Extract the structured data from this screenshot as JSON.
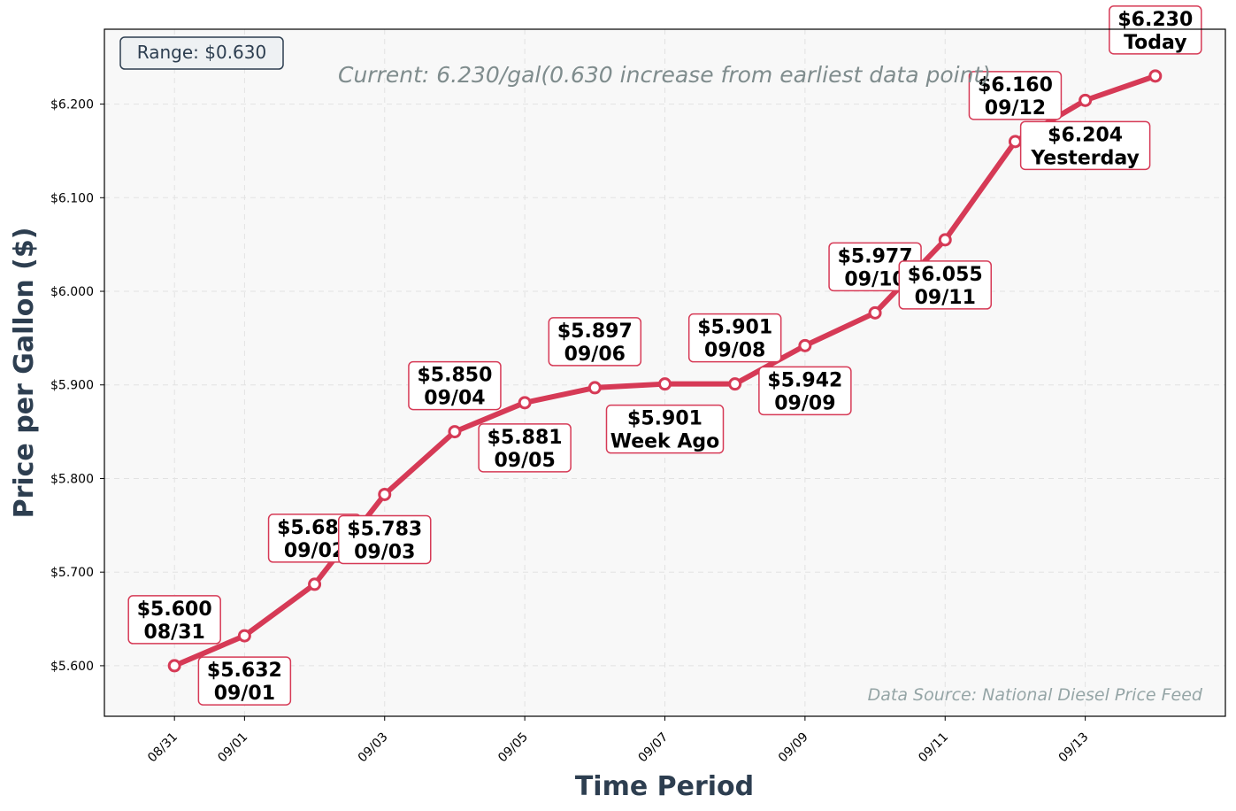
{
  "chart_data": {
    "type": "line",
    "xlabel": "Time Period",
    "ylabel": "Price per Gallon ($)",
    "x_tick_labels": [
      "08/31",
      "09/01",
      "09/03",
      "09/05",
      "09/07",
      "09/09",
      "09/11",
      "09/13"
    ],
    "x_tick_dates": [
      "2024-08-31",
      "2024-09-01",
      "2024-09-03",
      "2024-09-05",
      "2024-09-07",
      "2024-09-09",
      "2024-09-11",
      "2024-09-13"
    ],
    "y_tick_labels": [
      "$5.600",
      "$5.700",
      "$5.800",
      "$5.900",
      "$6.000",
      "$6.100",
      "$6.200"
    ],
    "y_ticks": [
      5.6,
      5.7,
      5.8,
      5.9,
      6.0,
      6.1,
      6.2
    ],
    "xlim": [
      "2024-08-30",
      "2024-09-15"
    ],
    "ylim": [
      5.546,
      6.28
    ],
    "grid": true,
    "series_color": "#d63a56",
    "x": [
      "2024-08-31",
      "2024-09-01",
      "2024-09-02",
      "2024-09-03",
      "2024-09-04",
      "2024-09-05",
      "2024-09-06",
      "2024-09-07",
      "2024-09-08",
      "2024-09-09",
      "2024-09-10",
      "2024-09-11",
      "2024-09-12",
      "2024-09-13",
      "2024-09-14"
    ],
    "values": [
      5.6,
      5.632,
      5.687,
      5.783,
      5.85,
      5.881,
      5.897,
      5.901,
      5.901,
      5.942,
      5.977,
      6.055,
      6.16,
      6.204,
      6.23
    ],
    "annotations": [
      {
        "index": 0,
        "price": "$5.600",
        "label": "08/31",
        "position": "above"
      },
      {
        "index": 1,
        "price": "$5.632",
        "label": "09/01",
        "position": "below"
      },
      {
        "index": 2,
        "price": "$5.687",
        "label": "09/02",
        "position": "above"
      },
      {
        "index": 3,
        "price": "$5.783",
        "label": "09/03",
        "position": "below"
      },
      {
        "index": 4,
        "price": "$5.850",
        "label": "09/04",
        "position": "above"
      },
      {
        "index": 5,
        "price": "$5.881",
        "label": "09/05",
        "position": "below"
      },
      {
        "index": 6,
        "price": "$5.897",
        "label": "09/06",
        "position": "above"
      },
      {
        "index": 7,
        "price": "$5.901",
        "label": "Week Ago",
        "position": "below"
      },
      {
        "index": 8,
        "price": "$5.901",
        "label": "09/08",
        "position": "above"
      },
      {
        "index": 9,
        "price": "$5.942",
        "label": "09/09",
        "position": "below"
      },
      {
        "index": 10,
        "price": "$5.977",
        "label": "09/10",
        "position": "above"
      },
      {
        "index": 11,
        "price": "$6.055",
        "label": "09/11",
        "position": "below"
      },
      {
        "index": 12,
        "price": "$6.160",
        "label": "09/12",
        "position": "above"
      },
      {
        "index": 13,
        "price": "$6.204",
        "label": "Yesterday",
        "position": "below"
      },
      {
        "index": 14,
        "price": "$6.230",
        "label": "Today",
        "position": "above"
      }
    ],
    "range_badge": "Range: $0.630",
    "current_note": "Current: 6.230/gal(0.630 increase from earliest data point)",
    "source_note": "Data Source: National Diesel Price Feed"
  }
}
